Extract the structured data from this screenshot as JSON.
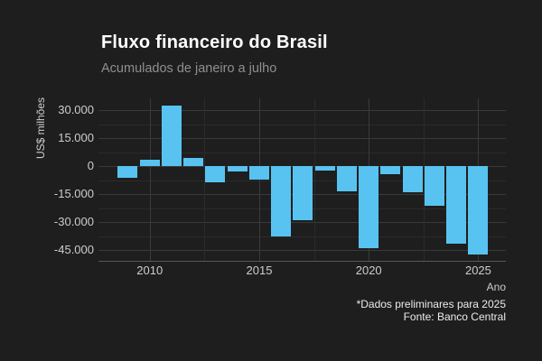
{
  "header": {
    "title": "Fluxo financeiro do Brasil",
    "subtitle": "Acumulados de janeiro a julho"
  },
  "chart_data": {
    "type": "bar",
    "title": "Fluxo financeiro do Brasil",
    "subtitle": "Acumulados de janeiro a julho",
    "xlabel": "Ano",
    "ylabel": "US$ milhões",
    "x": [
      2009,
      2010,
      2011,
      2012,
      2013,
      2014,
      2015,
      2016,
      2017,
      2018,
      2019,
      2020,
      2021,
      2022,
      2023,
      2024,
      2025
    ],
    "values": [
      -6000,
      3500,
      32400,
      4500,
      -8700,
      -3000,
      -7300,
      -37700,
      -29000,
      -2400,
      -13400,
      -43700,
      -4000,
      -14000,
      -21300,
      -41500,
      -47400
    ],
    "unit": "US$ milhões",
    "ylim": [
      -50660,
      36435
    ],
    "xlim": [
      2007.66,
      2026.26
    ],
    "y_major_ticks": [
      30000,
      15000,
      0,
      -15000,
      -30000,
      -45000
    ],
    "y_tick_labels": [
      "30.000",
      "15.000",
      "0",
      "-15.000",
      "-30.000",
      "-45.000"
    ],
    "y_minor_ticks": [
      22500,
      7500,
      -7500,
      -22500,
      -37500
    ],
    "x_major_ticks": [
      2010,
      2015,
      2020,
      2025
    ],
    "x_tick_labels": [
      "2010",
      "2015",
      "2020",
      "2025"
    ],
    "x_minor_ticks": [
      2012.5,
      2017.5,
      2022.5
    ],
    "grid": true,
    "legend": false,
    "bar_color": "#58C3F0",
    "background_color": "#1E1E1E",
    "grid_major_color": "#3A3A3A",
    "grid_minor_color": "#2B2B2B",
    "axis_line_color": "#585858",
    "text_color": "#CDCDCD"
  },
  "footer": {
    "note": "*Dados preliminares para 2025",
    "source": "Fonte: Banco Central"
  }
}
